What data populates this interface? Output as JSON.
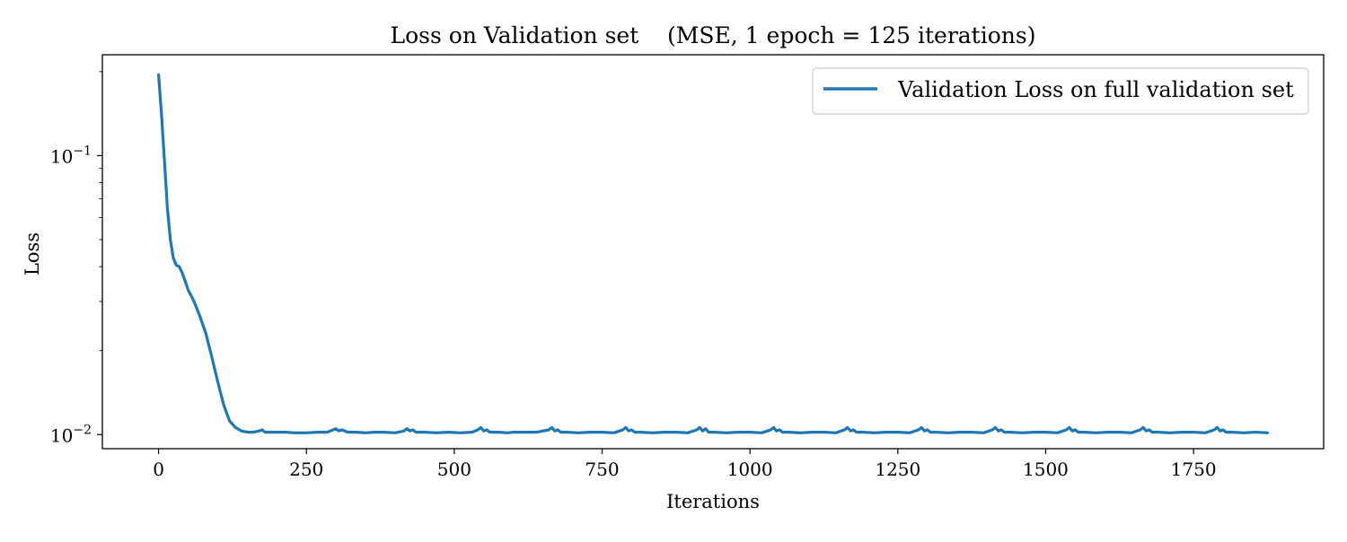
{
  "chart_data": {
    "type": "line",
    "title": "Loss on Validation set    (MSE, 1 epoch = 125 iterations)",
    "xlabel": "Iterations",
    "ylabel": "Loss",
    "xlim": [
      -95,
      1970
    ],
    "ylim": [
      0.0089,
      0.23
    ],
    "yscale": "log",
    "xticks": [
      0,
      250,
      500,
      750,
      1000,
      1250,
      1500,
      1750
    ],
    "xtick_labels": [
      "0",
      "250",
      "500",
      "750",
      "1000",
      "1250",
      "1500",
      "1750"
    ],
    "yticks": [
      {
        "value": 0.1,
        "base": "10",
        "exp": "−1"
      },
      {
        "value": 0.01,
        "base": "10",
        "exp": "−2"
      }
    ],
    "y_minor_ticks": [
      0.02,
      0.03,
      0.04,
      0.05,
      0.06,
      0.07,
      0.08,
      0.09,
      0.2
    ],
    "grid": false,
    "legend_position": "top-right",
    "series": [
      {
        "name": "Validation Loss on full validation set",
        "color": "#1f77b4",
        "x": [
          0,
          5,
          10,
          15,
          20,
          25,
          30,
          35,
          40,
          45,
          50,
          55,
          60,
          70,
          80,
          90,
          100,
          110,
          120,
          130,
          140,
          150,
          160,
          170,
          175,
          180,
          190,
          200,
          215,
          230,
          250,
          270,
          285,
          295,
          300,
          305,
          310,
          320,
          335,
          350,
          365,
          380,
          400,
          415,
          420,
          425,
          430,
          435,
          450,
          470,
          490,
          510,
          530,
          540,
          545,
          550,
          555,
          560,
          575,
          590,
          600,
          620,
          640,
          660,
          665,
          670,
          675,
          680,
          690,
          710,
          730,
          750,
          770,
          785,
          790,
          795,
          800,
          805,
          815,
          835,
          855,
          875,
          895,
          910,
          915,
          920,
          925,
          930,
          940,
          960,
          980,
          1000,
          1020,
          1035,
          1040,
          1045,
          1050,
          1055,
          1065,
          1085,
          1105,
          1125,
          1145,
          1160,
          1165,
          1170,
          1175,
          1180,
          1190,
          1210,
          1230,
          1250,
          1270,
          1285,
          1290,
          1295,
          1300,
          1305,
          1315,
          1335,
          1355,
          1375,
          1395,
          1410,
          1415,
          1420,
          1425,
          1430,
          1440,
          1460,
          1480,
          1500,
          1520,
          1535,
          1540,
          1545,
          1550,
          1555,
          1565,
          1585,
          1605,
          1625,
          1645,
          1660,
          1665,
          1670,
          1675,
          1680,
          1690,
          1710,
          1730,
          1750,
          1770,
          1785,
          1790,
          1795,
          1800,
          1805,
          1815,
          1835,
          1855,
          1875
        ],
        "y": [
          0.195,
          0.14,
          0.095,
          0.065,
          0.05,
          0.043,
          0.0405,
          0.04,
          0.038,
          0.0355,
          0.033,
          0.0315,
          0.03,
          0.0265,
          0.023,
          0.019,
          0.0155,
          0.0128,
          0.0112,
          0.0106,
          0.0103,
          0.0102,
          0.0102,
          0.0103,
          0.0104,
          0.0102,
          0.0102,
          0.0102,
          0.0102,
          0.01015,
          0.01015,
          0.0102,
          0.0102,
          0.0104,
          0.0105,
          0.0103,
          0.0104,
          0.0102,
          0.0102,
          0.01015,
          0.0102,
          0.0102,
          0.01015,
          0.0103,
          0.0105,
          0.0103,
          0.0104,
          0.0102,
          0.0102,
          0.01015,
          0.0102,
          0.01015,
          0.0102,
          0.0104,
          0.0106,
          0.0103,
          0.0104,
          0.0102,
          0.0102,
          0.01015,
          0.0102,
          0.0102,
          0.0102,
          0.0104,
          0.0106,
          0.0103,
          0.0104,
          0.0102,
          0.0102,
          0.01015,
          0.0102,
          0.0102,
          0.01015,
          0.0104,
          0.0106,
          0.0103,
          0.0104,
          0.0102,
          0.0102,
          0.01015,
          0.0102,
          0.0102,
          0.01015,
          0.0104,
          0.0106,
          0.0103,
          0.0105,
          0.0102,
          0.0102,
          0.01015,
          0.0102,
          0.0102,
          0.01015,
          0.0104,
          0.0106,
          0.0103,
          0.0104,
          0.0102,
          0.0102,
          0.01015,
          0.0102,
          0.0102,
          0.01015,
          0.0104,
          0.0106,
          0.0103,
          0.0104,
          0.0102,
          0.0102,
          0.01015,
          0.0102,
          0.0102,
          0.01015,
          0.0104,
          0.0106,
          0.0103,
          0.0104,
          0.0102,
          0.0102,
          0.01015,
          0.0102,
          0.0102,
          0.01015,
          0.0104,
          0.0106,
          0.0103,
          0.0104,
          0.0102,
          0.0102,
          0.01015,
          0.0102,
          0.0102,
          0.01015,
          0.0104,
          0.0106,
          0.0103,
          0.0104,
          0.0102,
          0.0102,
          0.01015,
          0.0102,
          0.0102,
          0.01015,
          0.0104,
          0.0106,
          0.0103,
          0.0104,
          0.0102,
          0.0102,
          0.01015,
          0.0102,
          0.0102,
          0.01015,
          0.0104,
          0.0106,
          0.0103,
          0.0104,
          0.0102,
          0.0102,
          0.01015,
          0.0102,
          0.01015
        ]
      }
    ]
  }
}
